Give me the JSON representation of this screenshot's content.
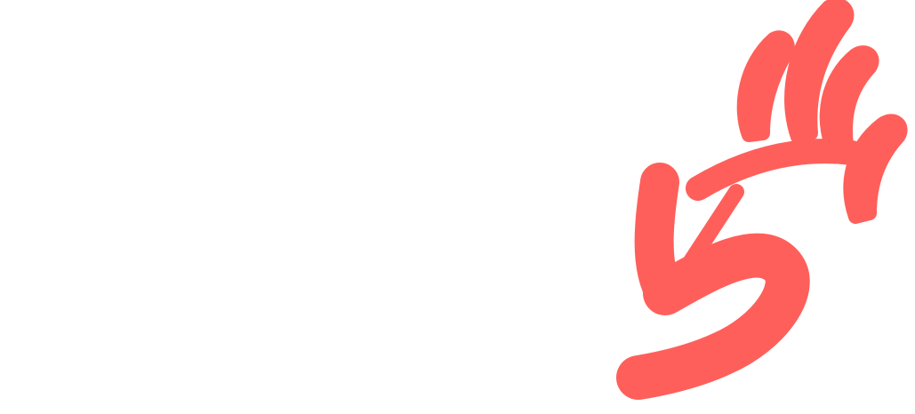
{
  "logo": {
    "icon": "hand-five-icon",
    "color": "#ff5f5a",
    "background": "#ffffff"
  }
}
